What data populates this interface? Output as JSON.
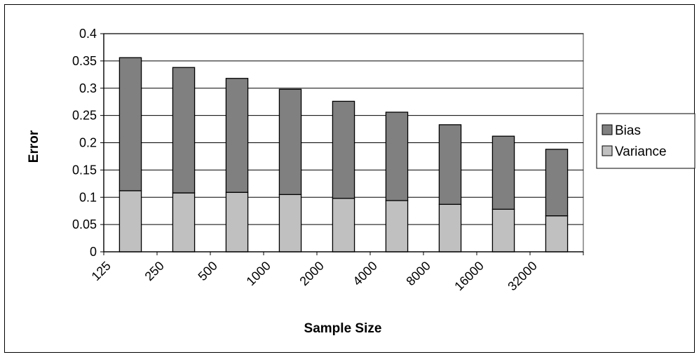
{
  "chart_data": {
    "type": "bar",
    "stacked": true,
    "title": "",
    "xlabel": "Sample Size",
    "ylabel": "Error",
    "categories": [
      "125",
      "250",
      "500",
      "1000",
      "2000",
      "4000",
      "8000",
      "16000",
      "32000"
    ],
    "ylim": [
      0,
      0.4
    ],
    "yticks": [
      "0",
      "0.05",
      "0.1",
      "0.15",
      "0.2",
      "0.25",
      "0.3",
      "0.35",
      "0.4"
    ],
    "grid": true,
    "legend_position": "right",
    "series": [
      {
        "name": "Variance",
        "color": "#c0c0c0",
        "values": [
          0.112,
          0.108,
          0.109,
          0.105,
          0.098,
          0.094,
          0.087,
          0.078,
          0.066
        ]
      },
      {
        "name": "Bias",
        "color": "#808080",
        "values": [
          0.244,
          0.23,
          0.209,
          0.193,
          0.178,
          0.162,
          0.146,
          0.134,
          0.122
        ]
      }
    ],
    "legend_order": [
      "Bias",
      "Variance"
    ]
  }
}
